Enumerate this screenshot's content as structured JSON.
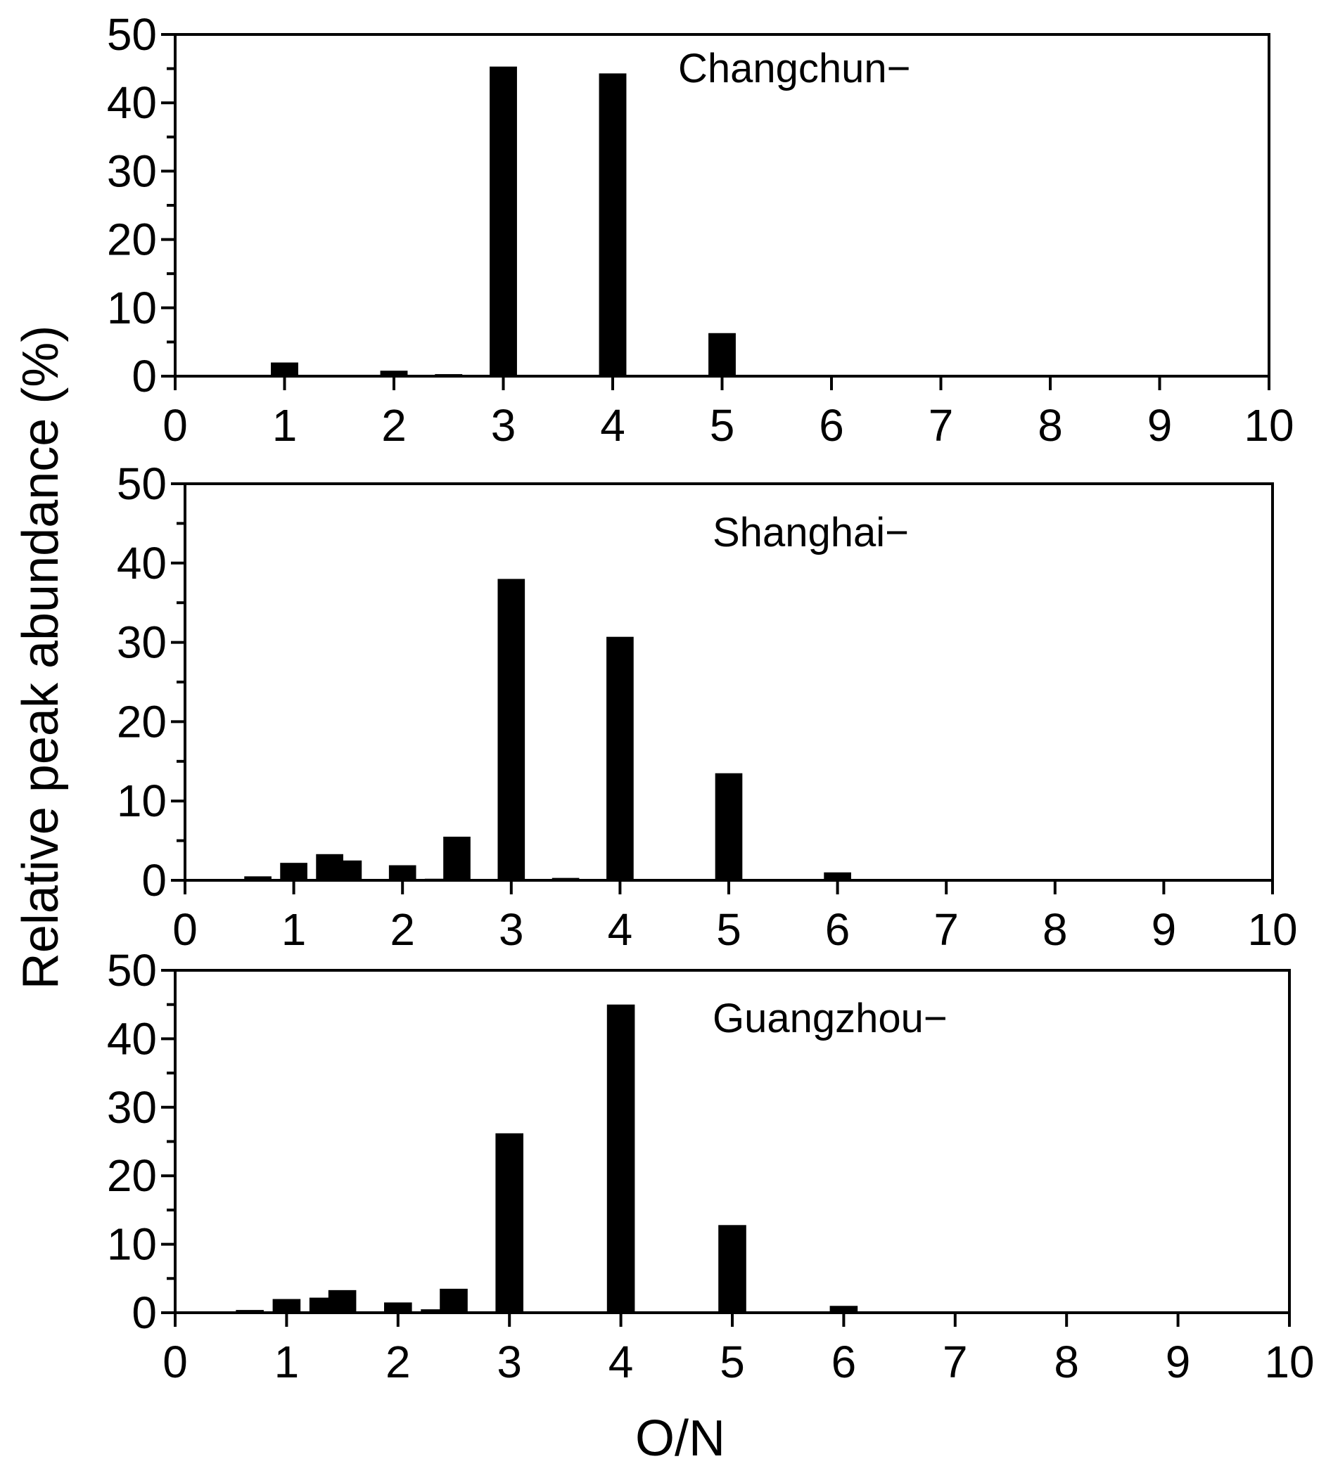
{
  "chart_data": [
    {
      "type": "bar",
      "annotation": "Changchun−",
      "x": [
        1,
        2,
        2.5,
        3,
        4,
        5,
        6
      ],
      "values": [
        2.0,
        0.8,
        0.3,
        45.3,
        44.3,
        6.3,
        0.2
      ],
      "xlim": [
        0,
        10
      ],
      "ylim": [
        0,
        50
      ],
      "xticks": [
        "0",
        "1",
        "2",
        "3",
        "4",
        "5",
        "6",
        "7",
        "8",
        "9",
        "10"
      ],
      "yticks": [
        "0",
        "10",
        "20",
        "30",
        "40",
        "50"
      ],
      "grid": false
    },
    {
      "type": "bar",
      "annotation": "Shanghai−",
      "x": [
        0.67,
        1,
        1.33,
        1.5,
        2,
        2.33,
        2.5,
        3,
        3.5,
        4,
        5,
        6
      ],
      "values": [
        0.5,
        2.2,
        3.3,
        2.5,
        1.9,
        0.2,
        5.5,
        38.0,
        0.3,
        30.7,
        13.5,
        1.0
      ],
      "xlim": [
        0,
        10
      ],
      "ylim": [
        0,
        50
      ],
      "xticks": [
        "0",
        "1",
        "2",
        "3",
        "4",
        "5",
        "6",
        "7",
        "8",
        "9",
        "10"
      ],
      "yticks": [
        "0",
        "10",
        "20",
        "30",
        "40",
        "50"
      ],
      "grid": false
    },
    {
      "type": "bar",
      "annotation": "Guangzhou−",
      "x": [
        0.67,
        1,
        1.33,
        1.5,
        2,
        2.33,
        2.5,
        3,
        3.5,
        4,
        5,
        6
      ],
      "values": [
        0.4,
        2.0,
        2.2,
        3.3,
        1.5,
        0.5,
        3.5,
        26.2,
        0.2,
        45.0,
        12.8,
        1.0
      ],
      "xlim": [
        0,
        10
      ],
      "ylim": [
        0,
        50
      ],
      "xticks": [
        "0",
        "1",
        "2",
        "3",
        "4",
        "5",
        "6",
        "7",
        "8",
        "9",
        "10"
      ],
      "yticks": [
        "0",
        "10",
        "20",
        "30",
        "40",
        "50"
      ],
      "grid": false
    }
  ],
  "ylabel": "Relative peak abundance (%)",
  "xlabel": "O/N",
  "bar_color": "#000000"
}
